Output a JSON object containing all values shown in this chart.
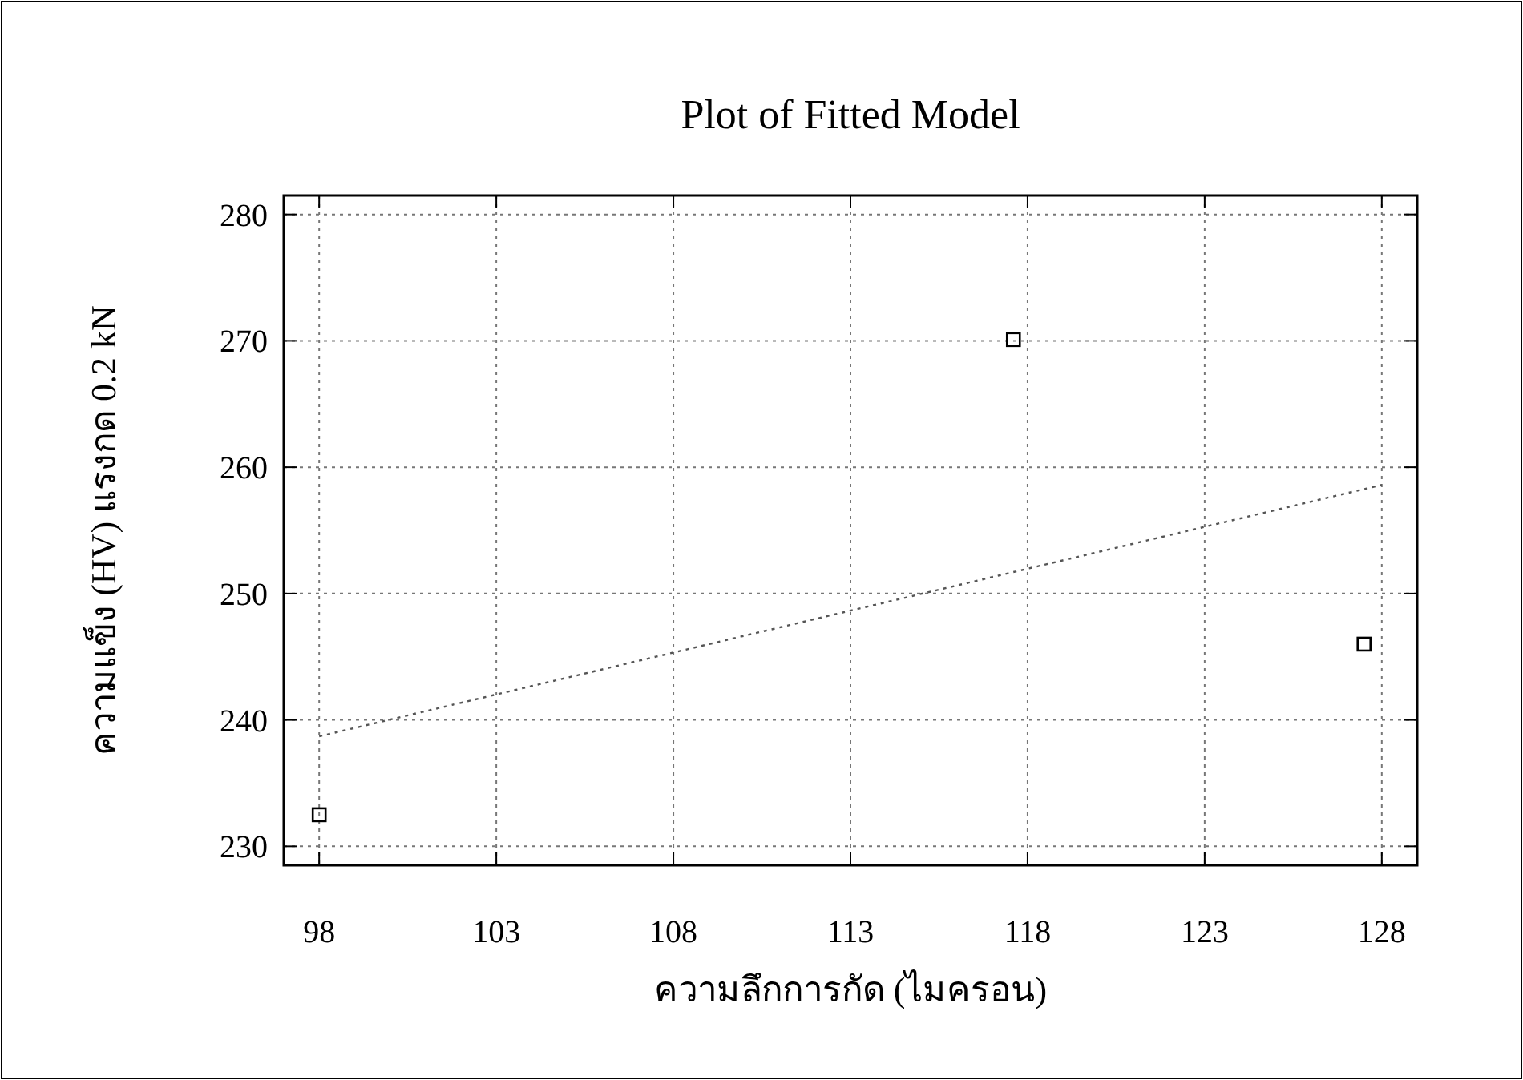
{
  "chart_data": {
    "type": "scatter",
    "title": "Plot of Fitted Model",
    "xlabel": "ความลึกการกัด (ไมครอน)",
    "ylabel": "ความแข็ง (HV) แรงกด 0.2 kN",
    "xlim": [
      97,
      129
    ],
    "xticks": [
      98,
      103,
      108,
      113,
      118,
      123,
      128
    ],
    "ylim": [
      228.5,
      281.5
    ],
    "yticks": [
      230,
      240,
      250,
      260,
      270,
      280
    ],
    "grid": true,
    "series": [
      {
        "color": "#000000",
        "marker": "square",
        "x": [
          98,
          117.6,
          127.5
        ],
        "values": [
          232.5,
          270.1,
          246.0
        ]
      },
      {
        "type": "line",
        "color": "#555555",
        "line_style": "dotted",
        "x": [
          98,
          128
        ],
        "values": [
          238.7,
          258.6
        ]
      }
    ]
  }
}
